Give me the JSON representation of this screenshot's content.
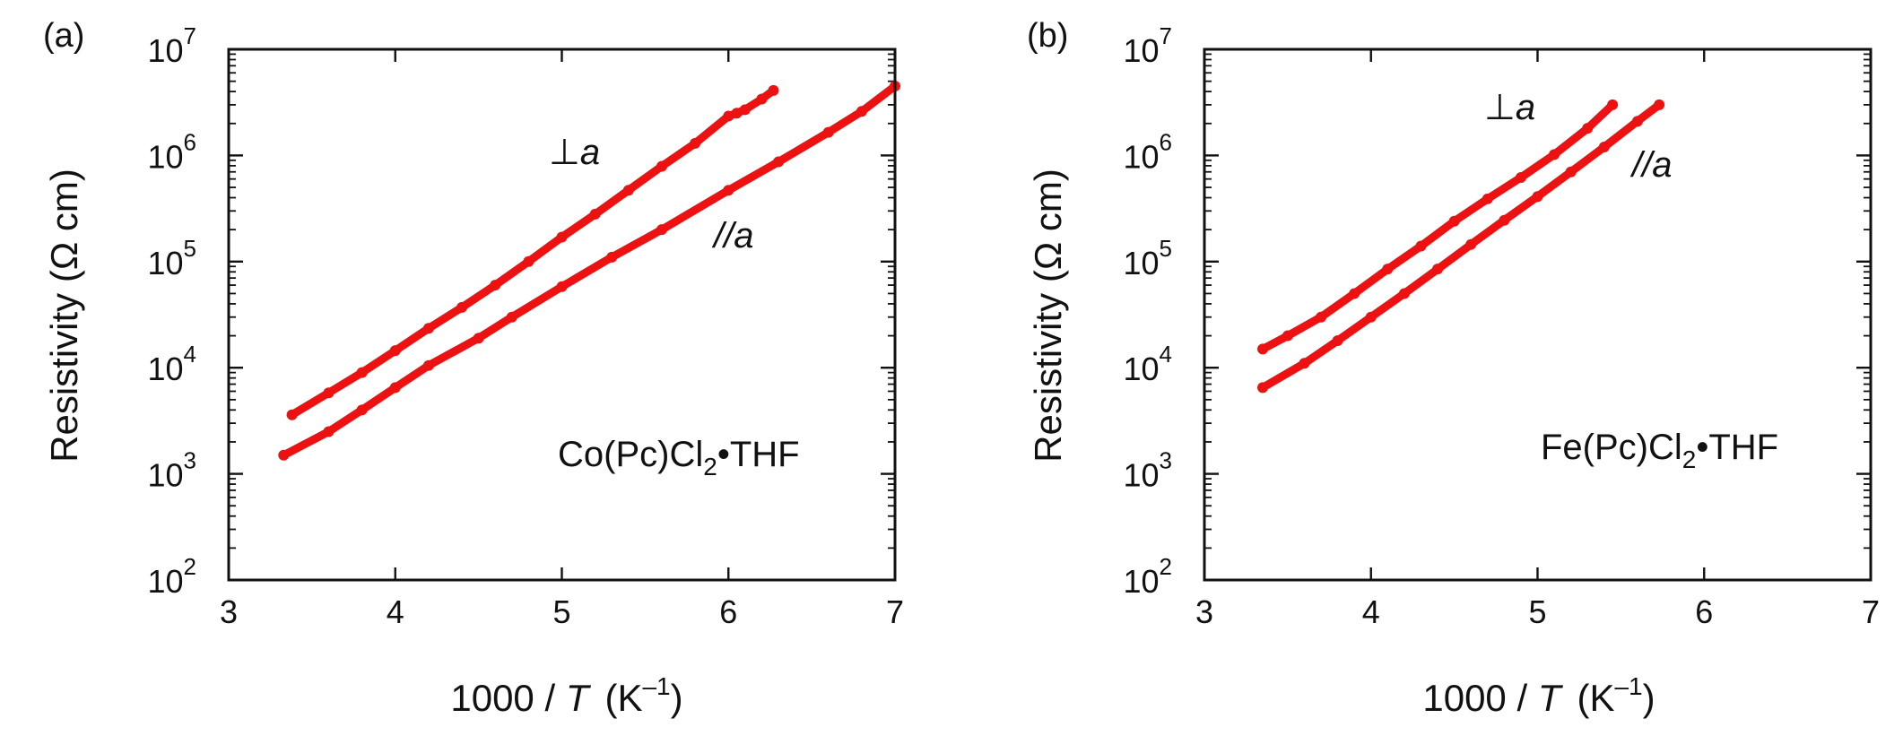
{
  "chart_data": [
    {
      "type": "line",
      "panel_label": "(a)",
      "compound_prefix": "Co(Pc)Cl",
      "compound_subscript": "2",
      "compound_suffix": "•THF",
      "xlabel_prefix": "1000 / ",
      "xlabel_var": "T",
      "xlabel_unit_open": "(K",
      "xlabel_unit_exp": "–1",
      "xlabel_unit_close": ")",
      "ylabel": "Resistivity (Ω cm)",
      "xlim": [
        3,
        7
      ],
      "ylim": [
        100,
        10000000
      ],
      "yscale": "log",
      "x_ticks": [
        "3",
        "4",
        "5",
        "6",
        "7"
      ],
      "y_tick_base": "10",
      "y_tick_exponents": [
        "2",
        "3",
        "4",
        "5",
        "6",
        "7"
      ],
      "color": "#ee1111",
      "series": [
        {
          "name": "⊥a",
          "label_symbol": "⊥",
          "label_var": "a",
          "x": [
            3.38,
            3.6,
            3.8,
            4.0,
            4.2,
            4.4,
            4.6,
            4.8,
            5.0,
            5.2,
            5.4,
            5.6,
            5.8,
            6.0,
            6.05,
            6.1,
            6.2,
            6.27
          ],
          "y": [
            3600,
            5800,
            9000,
            14500,
            23500,
            37000,
            60000,
            100000,
            170000,
            280000,
            470000,
            790000,
            1300000,
            2350000,
            2500000,
            2700000,
            3400000,
            4100000
          ]
        },
        {
          "name": "//a",
          "label_symbol": "//",
          "label_var": "a",
          "x": [
            3.33,
            3.6,
            3.8,
            4.0,
            4.2,
            4.5,
            4.7,
            5.0,
            5.3,
            5.6,
            6.0,
            6.3,
            6.6,
            6.8,
            7.0
          ],
          "y": [
            1500,
            2500,
            4000,
            6500,
            10500,
            19000,
            30000,
            58000,
            110000,
            200000,
            470000,
            870000,
            1650000,
            2600000,
            4500000
          ]
        }
      ]
    },
    {
      "type": "line",
      "panel_label": "(b)",
      "compound_prefix": "Fe(Pc)Cl",
      "compound_subscript": "2",
      "compound_suffix": "•THF",
      "xlabel_prefix": "1000 / ",
      "xlabel_var": "T",
      "xlabel_unit_open": "(K",
      "xlabel_unit_exp": "–1",
      "xlabel_unit_close": ")",
      "ylabel": "Resistivity (Ω cm)",
      "xlim": [
        3,
        7
      ],
      "ylim": [
        100,
        10000000
      ],
      "yscale": "log",
      "x_ticks": [
        "3",
        "4",
        "5",
        "6",
        "7"
      ],
      "y_tick_base": "10",
      "y_tick_exponents": [
        "2",
        "3",
        "4",
        "5",
        "6",
        "7"
      ],
      "color": "#ee1111",
      "series": [
        {
          "name": "⊥a",
          "label_symbol": "⊥",
          "label_var": "a",
          "x": [
            3.35,
            3.5,
            3.7,
            3.9,
            4.1,
            4.3,
            4.5,
            4.7,
            4.9,
            5.1,
            5.3,
            5.45
          ],
          "y": [
            15000,
            20000,
            30000,
            50000,
            85000,
            140000,
            240000,
            390000,
            620000,
            1020000,
            1800000,
            3000000
          ]
        },
        {
          "name": "//a",
          "label_symbol": "//",
          "label_var": "a",
          "x": [
            3.35,
            3.6,
            3.8,
            4.0,
            4.2,
            4.4,
            4.6,
            4.8,
            5.0,
            5.2,
            5.4,
            5.6,
            5.73
          ],
          "y": [
            6500,
            11000,
            18000,
            30000,
            50000,
            85000,
            145000,
            245000,
            410000,
            700000,
            1200000,
            2100000,
            3000000
          ]
        }
      ]
    }
  ]
}
